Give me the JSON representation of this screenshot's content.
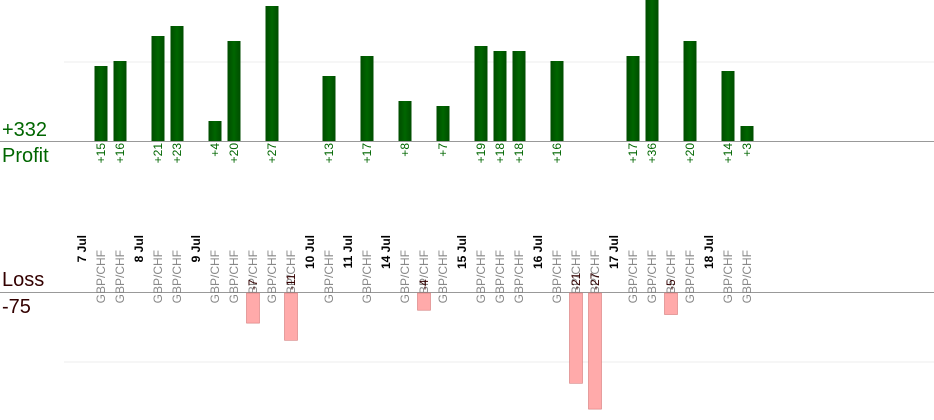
{
  "summary": {
    "profit_total": "+332",
    "profit_label": "Profit",
    "loss_label": "Loss",
    "loss_total": "-75"
  },
  "colors": {
    "profit_bar": "#006600",
    "loss_bar": "#ffaaaa",
    "loss_bar_border": "#cc6666",
    "profit_text": "#006600",
    "loss_text": "#330000",
    "category_text": "#888888",
    "date_text": "#000000",
    "gridline": "#eeeeee",
    "baseline": "#999999"
  },
  "chart_data": {
    "type": "bar",
    "grid": true,
    "groups": [
      {
        "date": "7 Jul",
        "trades": [
          {
            "pair": "GBP/CHF",
            "value": 15
          },
          {
            "pair": "GBP/CHF",
            "value": 16
          }
        ]
      },
      {
        "date": "8 Jul",
        "trades": [
          {
            "pair": "GBP/CHF",
            "value": 21
          },
          {
            "pair": "GBP/CHF",
            "value": 23
          }
        ]
      },
      {
        "date": "9 Jul",
        "trades": [
          {
            "pair": "GBP/CHF",
            "value": 4
          },
          {
            "pair": "GBP/CHF",
            "value": 20
          },
          {
            "pair": "GBP/CHF",
            "value": -7
          },
          {
            "pair": "GBP/CHF",
            "value": 27
          },
          {
            "pair": "GBP/CHF",
            "value": -11
          }
        ]
      },
      {
        "date": "10 Jul",
        "trades": [
          {
            "pair": "GBP/CHF",
            "value": 13
          }
        ]
      },
      {
        "date": "11 Jul",
        "trades": [
          {
            "pair": "GBP/CHF",
            "value": 17
          }
        ]
      },
      {
        "date": "14 Jul",
        "trades": [
          {
            "pair": "GBP/CHF",
            "value": 8
          },
          {
            "pair": "GBP/CHF",
            "value": -4
          },
          {
            "pair": "GBP/CHF",
            "value": 7
          }
        ]
      },
      {
        "date": "15 Jul",
        "trades": [
          {
            "pair": "GBP/CHF",
            "value": 19
          },
          {
            "pair": "GBP/CHF",
            "value": 18
          },
          {
            "pair": "GBP/CHF",
            "value": 18
          }
        ]
      },
      {
        "date": "16 Jul",
        "trades": [
          {
            "pair": "GBP/CHF",
            "value": 16
          },
          {
            "pair": "GBP/CHF",
            "value": -21
          },
          {
            "pair": "GBP/CHF",
            "value": -27
          }
        ]
      },
      {
        "date": "17 Jul",
        "trades": [
          {
            "pair": "GBP/CHF",
            "value": 17
          },
          {
            "pair": "GBP/CHF",
            "value": 36
          },
          {
            "pair": "GBP/CHF",
            "value": -5
          },
          {
            "pair": "GBP/CHF",
            "value": 20
          }
        ]
      },
      {
        "date": "18 Jul",
        "trades": [
          {
            "pair": "GBP/CHF",
            "value": 14
          },
          {
            "pair": "GBP/CHF",
            "value": 3
          }
        ]
      }
    ]
  }
}
